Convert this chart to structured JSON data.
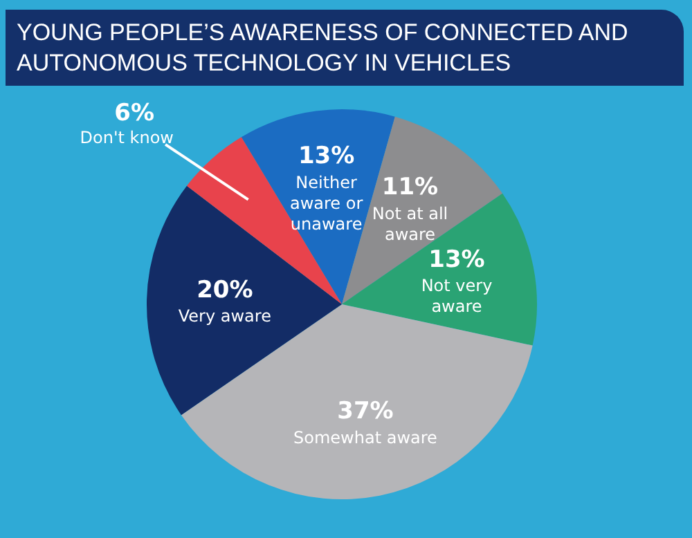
{
  "chart_data": {
    "type": "pie",
    "title": "YOUNG PEOPLE’S AWARENESS OF CONNECTED AND AUTONOMOUS TECHNOLOGY IN VEHICLES",
    "categories": [
      "Neither aware or unaware",
      "Not at all aware",
      "Not very aware",
      "Somewhat aware",
      "Very aware",
      "Don't know"
    ],
    "values": [
      13,
      11,
      13,
      37,
      20,
      6
    ],
    "colors": [
      "#1b6cc2",
      "#8d8d8f",
      "#2aa374",
      "#b5b5b8",
      "#132c66",
      "#e8434c"
    ],
    "value_labels": [
      "13%",
      "11%",
      "13%",
      "37%",
      "20%",
      "6%"
    ],
    "legend": false
  }
}
